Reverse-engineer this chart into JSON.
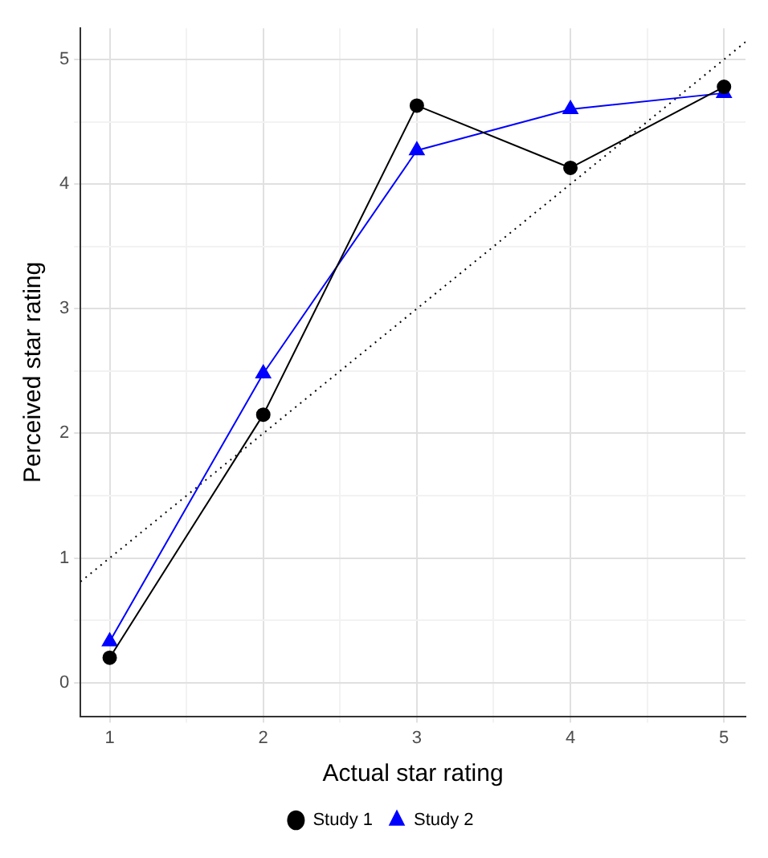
{
  "chart_data": {
    "type": "line",
    "xlabel": "Actual star rating",
    "ylabel": "Perceived star rating",
    "x": [
      1,
      2,
      3,
      4,
      5
    ],
    "series": [
      {
        "name": "Study 1",
        "color": "#000000",
        "marker": "circle",
        "values": [
          0.2,
          2.15,
          4.63,
          4.13,
          4.78
        ]
      },
      {
        "name": "Study 2",
        "color": "#0000ff",
        "marker": "triangle",
        "values": [
          0.33,
          2.48,
          4.27,
          4.6,
          4.73
        ]
      },
      {
        "color": "#000000",
        "marker": "none",
        "line_style": "dotted",
        "x": [
          0.81,
          5.14
        ],
        "values": [
          0.81,
          5.14
        ]
      }
    ],
    "xlim": [
      0.81,
      5.14
    ],
    "ylim": [
      -0.27,
      5.25
    ],
    "xticks": [
      1,
      {
        "value": 1.5,
        "label": null
      },
      2,
      {
        "value": 2.5,
        "label": null
      },
      3,
      {
        "value": 3.5,
        "label": null
      },
      4,
      {
        "value": 4.5,
        "label": null
      },
      5
    ],
    "yticks": [
      0,
      {
        "value": 0.5,
        "label": null
      },
      1,
      {
        "value": 1.5,
        "label": null
      },
      2,
      {
        "value": 2.5,
        "label": null
      },
      3,
      {
        "value": 3.5,
        "label": null
      },
      4,
      {
        "value": 4.5,
        "label": null
      },
      5
    ],
    "grid": true,
    "legend": "bottom"
  }
}
